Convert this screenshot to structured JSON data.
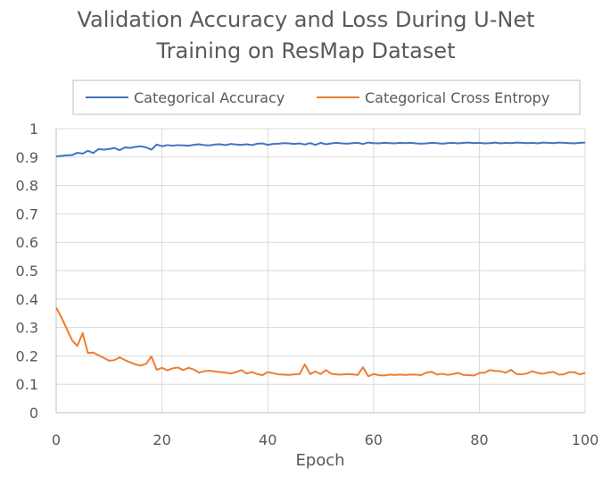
{
  "chart_data": {
    "type": "line",
    "title_lines": [
      "Validation Accuracy and Loss During U-Net",
      "Training on ResMap Dataset"
    ],
    "xlabel": "Epoch",
    "ylabel": "",
    "xlim": [
      0,
      100
    ],
    "ylim": [
      0,
      1
    ],
    "x_ticks": [
      0,
      20,
      40,
      60,
      80,
      100
    ],
    "y_ticks": [
      0,
      0.1,
      0.2,
      0.3,
      0.4,
      0.5,
      0.6,
      0.7,
      0.8,
      0.9,
      1
    ],
    "x_tick_labels": [
      "0",
      "20",
      "40",
      "60",
      "80",
      "100"
    ],
    "y_tick_labels": [
      "0",
      "0.1",
      "0.2",
      "0.3",
      "0.4",
      "0.5",
      "0.6",
      "0.7",
      "0.8",
      "0.9",
      "1"
    ],
    "grid": true,
    "legend_position": "top",
    "series": [
      {
        "name": "Categorical Accuracy",
        "color": "#4472c4",
        "x": [
          0,
          1,
          2,
          3,
          4,
          5,
          6,
          7,
          8,
          9,
          10,
          11,
          12,
          13,
          14,
          15,
          16,
          17,
          18,
          19,
          20,
          21,
          22,
          23,
          24,
          25,
          26,
          27,
          28,
          29,
          30,
          31,
          32,
          33,
          34,
          35,
          36,
          37,
          38,
          39,
          40,
          41,
          42,
          43,
          44,
          45,
          46,
          47,
          48,
          49,
          50,
          51,
          52,
          53,
          54,
          55,
          56,
          57,
          58,
          59,
          60,
          61,
          62,
          63,
          64,
          65,
          66,
          67,
          68,
          69,
          70,
          71,
          72,
          73,
          74,
          75,
          76,
          77,
          78,
          79,
          80,
          81,
          82,
          83,
          84,
          85,
          86,
          87,
          88,
          89,
          90,
          91,
          92,
          93,
          94,
          95,
          96,
          97,
          98,
          99,
          100
        ],
        "values": [
          0.902,
          0.904,
          0.906,
          0.907,
          0.915,
          0.912,
          0.922,
          0.914,
          0.928,
          0.926,
          0.928,
          0.932,
          0.924,
          0.934,
          0.932,
          0.936,
          0.938,
          0.934,
          0.926,
          0.944,
          0.938,
          0.942,
          0.94,
          0.942,
          0.941,
          0.94,
          0.943,
          0.945,
          0.942,
          0.941,
          0.944,
          0.945,
          0.942,
          0.946,
          0.944,
          0.943,
          0.945,
          0.942,
          0.947,
          0.948,
          0.943,
          0.946,
          0.947,
          0.949,
          0.948,
          0.946,
          0.948,
          0.944,
          0.949,
          0.943,
          0.95,
          0.945,
          0.948,
          0.95,
          0.948,
          0.947,
          0.949,
          0.95,
          0.946,
          0.951,
          0.949,
          0.948,
          0.95,
          0.949,
          0.948,
          0.95,
          0.949,
          0.95,
          0.948,
          0.947,
          0.948,
          0.95,
          0.949,
          0.947,
          0.949,
          0.95,
          0.948,
          0.95,
          0.951,
          0.949,
          0.95,
          0.948,
          0.949,
          0.951,
          0.948,
          0.95,
          0.949,
          0.951,
          0.95,
          0.949,
          0.95,
          0.948,
          0.951,
          0.95,
          0.949,
          0.951,
          0.95,
          0.949,
          0.948,
          0.95,
          0.951
        ]
      },
      {
        "name": "Categorical Cross Entropy",
        "color": "#ed7d31",
        "x": [
          0,
          1,
          2,
          3,
          4,
          5,
          6,
          7,
          8,
          9,
          10,
          11,
          12,
          13,
          14,
          15,
          16,
          17,
          18,
          19,
          20,
          21,
          22,
          23,
          24,
          25,
          26,
          27,
          28,
          29,
          30,
          31,
          32,
          33,
          34,
          35,
          36,
          37,
          38,
          39,
          40,
          41,
          42,
          43,
          44,
          45,
          46,
          47,
          48,
          49,
          50,
          51,
          52,
          53,
          54,
          55,
          56,
          57,
          58,
          59,
          60,
          61,
          62,
          63,
          64,
          65,
          66,
          67,
          68,
          69,
          70,
          71,
          72,
          73,
          74,
          75,
          76,
          77,
          78,
          79,
          80,
          81,
          82,
          83,
          84,
          85,
          86,
          87,
          88,
          89,
          90,
          91,
          92,
          93,
          94,
          95,
          96,
          97,
          98,
          99,
          100
        ],
        "values": [
          0.37,
          0.335,
          0.295,
          0.255,
          0.235,
          0.28,
          0.21,
          0.212,
          0.202,
          0.193,
          0.183,
          0.185,
          0.195,
          0.185,
          0.177,
          0.17,
          0.166,
          0.172,
          0.198,
          0.151,
          0.158,
          0.149,
          0.156,
          0.159,
          0.15,
          0.158,
          0.152,
          0.141,
          0.146,
          0.148,
          0.145,
          0.143,
          0.141,
          0.138,
          0.143,
          0.15,
          0.138,
          0.143,
          0.136,
          0.132,
          0.143,
          0.139,
          0.135,
          0.134,
          0.133,
          0.135,
          0.136,
          0.17,
          0.136,
          0.145,
          0.136,
          0.15,
          0.137,
          0.135,
          0.134,
          0.136,
          0.135,
          0.133,
          0.16,
          0.128,
          0.136,
          0.132,
          0.131,
          0.134,
          0.133,
          0.134,
          0.133,
          0.134,
          0.134,
          0.132,
          0.141,
          0.144,
          0.134,
          0.137,
          0.133,
          0.136,
          0.14,
          0.133,
          0.132,
          0.131,
          0.14,
          0.141,
          0.15,
          0.147,
          0.146,
          0.141,
          0.151,
          0.136,
          0.135,
          0.138,
          0.146,
          0.14,
          0.137,
          0.141,
          0.144,
          0.134,
          0.135,
          0.143,
          0.142,
          0.135,
          0.14
        ]
      }
    ]
  }
}
